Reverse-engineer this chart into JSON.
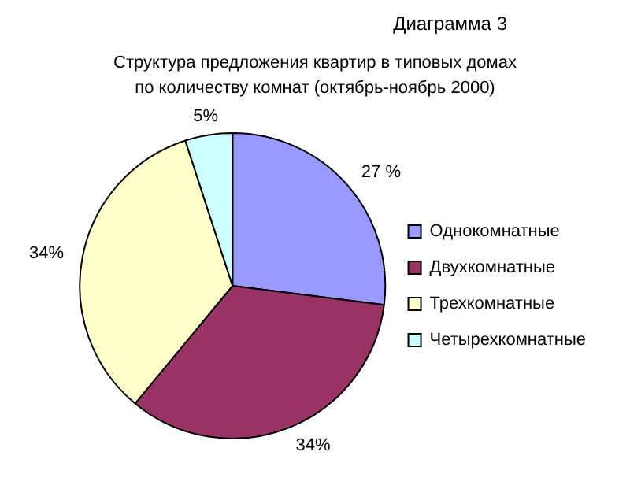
{
  "chart_data": {
    "type": "pie",
    "subtitle": "Диаграмма 3",
    "title": "Структура предложения квартир в типовых домах по количеству комнат (октябрь-ноябрь 2000)",
    "categories": [
      "Однокомнатные",
      "Двухкомнатные",
      "Трехкомнатные",
      "Четырехкомнатные"
    ],
    "values": [
      27,
      34,
      34,
      5
    ],
    "value_labels": [
      "27 %",
      "34%",
      "34%",
      "5%"
    ],
    "colors": [
      "#9999ff",
      "#993366",
      "#ffffcc",
      "#ccffff"
    ],
    "legend": "right"
  }
}
